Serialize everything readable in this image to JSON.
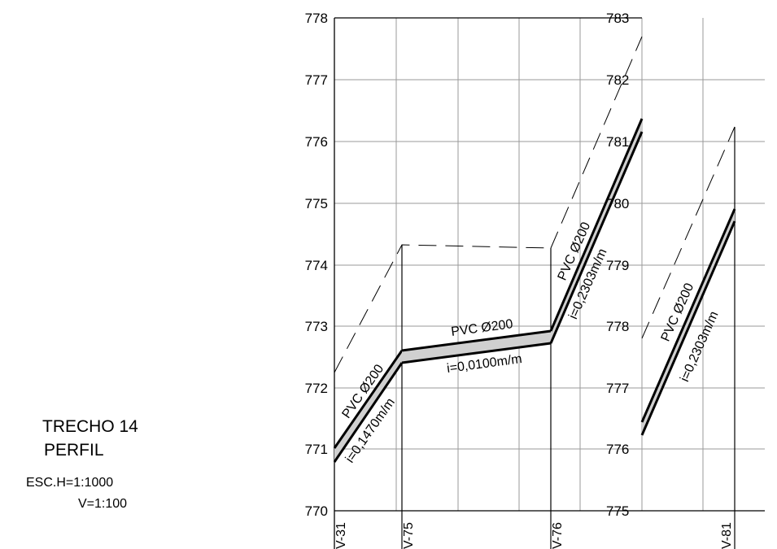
{
  "title": {
    "line1": "TRECHO 14",
    "line2": "PERFIL",
    "scale_h": "ESC.H=1:1000",
    "scale_v": "V=1:100"
  },
  "left_axis": {
    "ticks": [
      "770",
      "771",
      "772",
      "773",
      "774",
      "775",
      "776",
      "777",
      "778"
    ]
  },
  "right_axis": {
    "ticks": [
      "775",
      "776",
      "777",
      "778",
      "779",
      "780",
      "781",
      "782",
      "783"
    ]
  },
  "manholes": [
    "V-31",
    "V-75",
    "V-76",
    "V-81"
  ],
  "segments": [
    {
      "pipe": "PVC Ø200",
      "slope": "i=0,1470m/m"
    },
    {
      "pipe": "PVC Ø200",
      "slope": "i=0,0100m/m"
    },
    {
      "pipe": "PVC Ø200",
      "slope": "i=0,2303m/m"
    },
    {
      "pipe": "PVC Ø200",
      "slope": "i=0,2303m/m"
    }
  ]
}
